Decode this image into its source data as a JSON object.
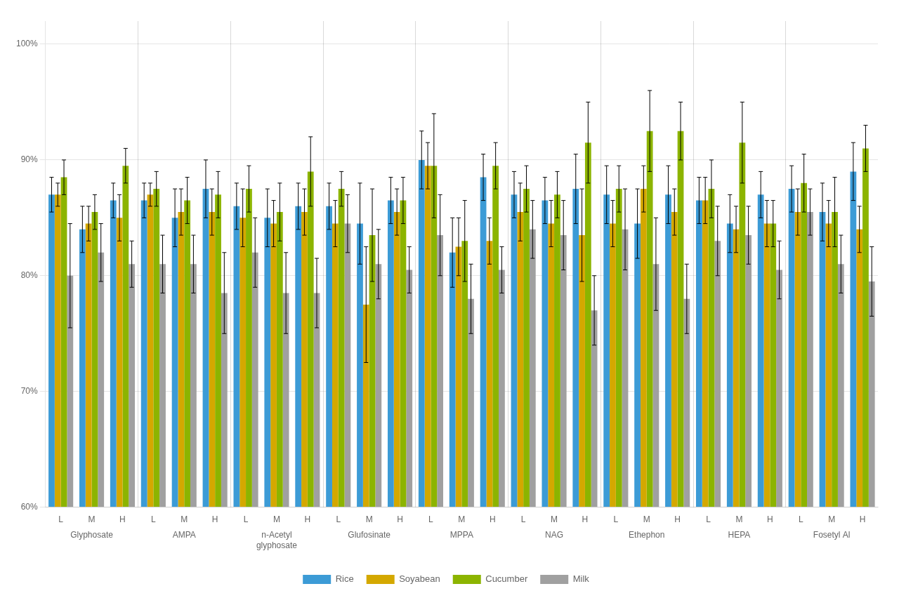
{
  "chart_data": {
    "type": "bar",
    "categories": [
      "L",
      "M",
      "H",
      "L",
      "M",
      "H",
      "L",
      "M",
      "H",
      "L",
      "M",
      "H",
      "L",
      "M",
      "H",
      "L",
      "M",
      "H",
      "L",
      "M",
      "H",
      "L",
      "M",
      "H",
      "L",
      "M",
      "H"
    ],
    "annotations": [
      "Glyphosate",
      "AMPA",
      "n-Acetyl\nglyphosate",
      "Glufosinate",
      "MPPA",
      "NAG",
      "Ethephon",
      "HEPA",
      "Fosetyl Al"
    ],
    "series": [
      {
        "name": "Rice",
        "color": "#3c9bd6",
        "values": [
          87.0,
          84.0,
          86.5,
          86.5,
          85.0,
          87.5,
          86.0,
          85.0,
          86.0,
          86.0,
          84.5,
          86.5,
          90.0,
          82.0,
          88.5,
          87.0,
          86.5,
          87.5,
          87.0,
          84.5,
          87.0,
          86.5,
          84.5,
          87.0,
          87.5,
          85.5,
          89.0
        ],
        "errors": [
          1.5,
          2.0,
          1.5,
          1.5,
          2.5,
          2.5,
          2.0,
          2.5,
          2.0,
          2.0,
          3.5,
          2.0,
          2.5,
          3.0,
          2.0,
          2.0,
          2.0,
          3.0,
          2.5,
          3.0,
          2.5,
          2.0,
          2.5,
          2.0,
          2.0,
          2.5,
          2.5
        ]
      },
      {
        "name": "Soyabean",
        "color": "#d4a800",
        "values": [
          87.0,
          84.5,
          85.0,
          87.0,
          85.5,
          85.5,
          85.0,
          84.5,
          85.5,
          84.5,
          77.5,
          85.5,
          89.5,
          82.5,
          83.0,
          85.5,
          84.5,
          83.5,
          84.5,
          87.5,
          85.5,
          86.5,
          84.0,
          84.5,
          85.5,
          84.5,
          84.0
        ],
        "errors": [
          1.0,
          1.5,
          2.0,
          1.0,
          2.0,
          2.0,
          2.5,
          2.0,
          2.0,
          2.0,
          5.0,
          2.0,
          2.0,
          2.5,
          2.0,
          2.5,
          2.0,
          4.0,
          2.0,
          2.0,
          2.0,
          2.0,
          2.0,
          2.0,
          2.0,
          2.0,
          2.0
        ]
      },
      {
        "name": "Cucumber",
        "color": "#8cb400",
        "values": [
          88.5,
          85.5,
          89.5,
          87.5,
          86.5,
          87.0,
          87.5,
          85.5,
          89.0,
          87.5,
          83.5,
          86.5,
          89.5,
          83.0,
          89.5,
          87.5,
          87.0,
          91.5,
          87.5,
          92.5,
          92.5,
          87.5,
          91.5,
          84.5,
          88.0,
          85.5,
          91.0
        ],
        "errors": [
          1.5,
          1.5,
          1.5,
          1.5,
          2.0,
          2.0,
          2.0,
          2.5,
          3.0,
          1.5,
          4.0,
          2.0,
          4.5,
          3.5,
          2.0,
          2.0,
          2.0,
          3.5,
          2.0,
          3.5,
          2.5,
          2.5,
          3.5,
          2.0,
          2.5,
          3.0,
          2.0
        ]
      },
      {
        "name": "Milk",
        "color": "#a0a0a0",
        "values": [
          80.0,
          82.0,
          81.0,
          81.0,
          81.0,
          78.5,
          82.0,
          78.5,
          78.5,
          84.5,
          81.0,
          80.5,
          83.5,
          78.0,
          80.5,
          84.0,
          83.5,
          77.0,
          84.0,
          81.0,
          78.0,
          83.0,
          83.5,
          80.5,
          85.5,
          81.0,
          79.5
        ],
        "errors": [
          4.5,
          2.5,
          2.0,
          2.5,
          2.5,
          3.5,
          3.0,
          3.5,
          3.0,
          2.5,
          3.0,
          2.0,
          3.5,
          3.0,
          2.0,
          2.5,
          3.0,
          3.0,
          3.5,
          4.0,
          3.0,
          3.0,
          2.5,
          2.5,
          2.0,
          2.5,
          3.0
        ]
      }
    ],
    "ylim": [
      60,
      102
    ],
    "yticks": [
      {
        "value": 60,
        "label": "60%"
      },
      {
        "value": 70,
        "label": "70%"
      },
      {
        "value": 80,
        "label": "80%"
      },
      {
        "value": 90,
        "label": "90%"
      },
      {
        "value": 100,
        "label": "100%"
      }
    ],
    "grid": true,
    "legend": "bottom"
  }
}
